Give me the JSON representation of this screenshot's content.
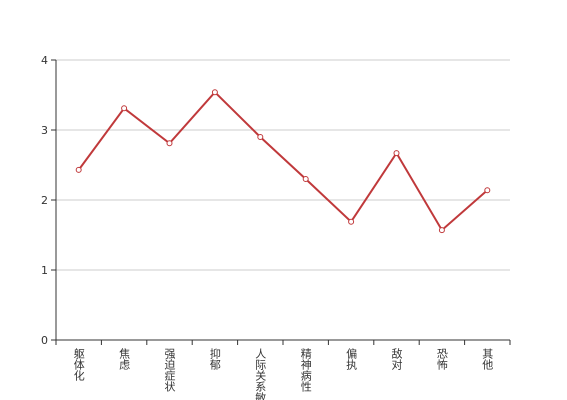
{
  "chart_data": {
    "type": "line",
    "categories": [
      "躯体化",
      "焦虑",
      "强迫症状",
      "抑郁",
      "人际关系敏感",
      "精神病性",
      "偏执",
      "敌对",
      "恐怖",
      "其他"
    ],
    "series": [
      {
        "color": "#c0393b",
        "values": [
          2.43,
          3.31,
          2.81,
          3.54,
          2.9,
          2.3,
          1.69,
          2.67,
          1.57,
          2.14
        ]
      }
    ],
    "ylim": [
      0,
      4
    ],
    "yticks": [
      0,
      1,
      2,
      3,
      4
    ],
    "grid": true
  }
}
